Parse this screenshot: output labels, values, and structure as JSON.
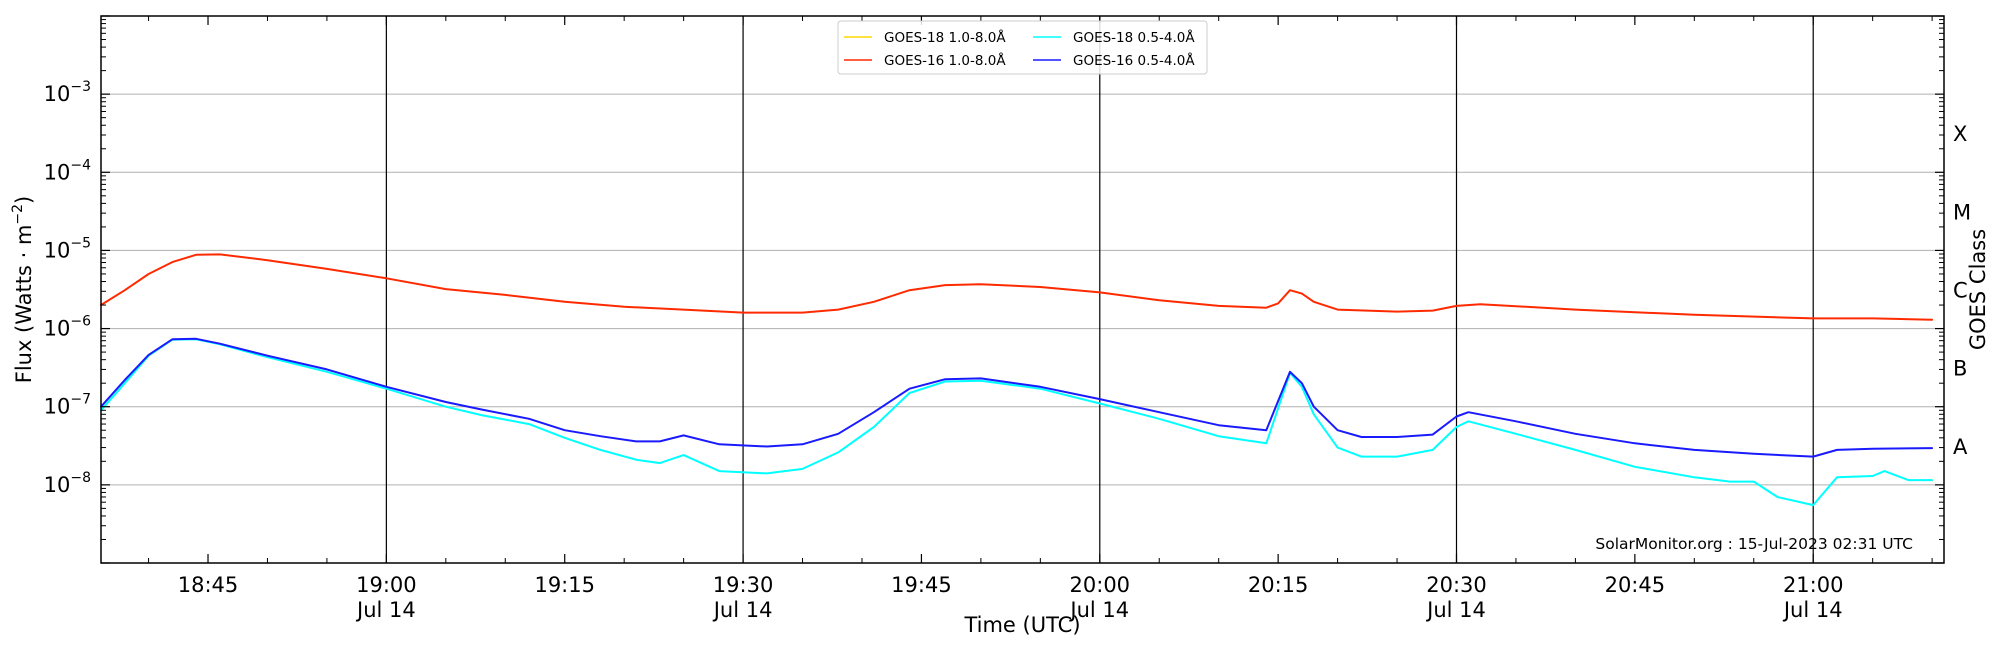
{
  "chart_data": {
    "type": "line",
    "xlabel": "Time (UTC)",
    "ylabel": "Flux (Watts · m⁻²)",
    "ylabel_base": "Flux (Watts · m",
    "ylabel_sup": "−2",
    "ylabel_close": ")",
    "y2label": "GOES Class",
    "y_scale": "log",
    "xlim": [
      "18:36",
      "21:11"
    ],
    "ylim": [
      1e-09,
      0.01
    ],
    "grid": "horizontal",
    "legend_position": "top-center",
    "x_ticks": [
      {
        "time": "18:45",
        "label": "18:45",
        "sub": ""
      },
      {
        "time": "19:00",
        "label": "19:00",
        "sub": "Jul 14"
      },
      {
        "time": "19:15",
        "label": "19:15",
        "sub": ""
      },
      {
        "time": "19:30",
        "label": "19:30",
        "sub": "Jul 14"
      },
      {
        "time": "19:45",
        "label": "19:45",
        "sub": ""
      },
      {
        "time": "20:00",
        "label": "20:00",
        "sub": "Jul 14"
      },
      {
        "time": "20:15",
        "label": "20:15",
        "sub": ""
      },
      {
        "time": "20:30",
        "label": "20:30",
        "sub": "Jul 14"
      },
      {
        "time": "20:45",
        "label": "20:45",
        "sub": ""
      },
      {
        "time": "21:00",
        "label": "21:00",
        "sub": "Jul 14"
      }
    ],
    "vertical_lines": [
      "19:00",
      "19:30",
      "20:00",
      "20:30",
      "21:00"
    ],
    "y_ticks": [
      {
        "exp": -3,
        "label": "10",
        "sup": "−3"
      },
      {
        "exp": -4,
        "label": "10",
        "sup": "−4"
      },
      {
        "exp": -5,
        "label": "10",
        "sup": "−5"
      },
      {
        "exp": -6,
        "label": "10",
        "sup": "−6"
      },
      {
        "exp": -7,
        "label": "10",
        "sup": "−7"
      },
      {
        "exp": -8,
        "label": "10",
        "sup": "−8"
      }
    ],
    "goes_classes": [
      {
        "label": "X",
        "exp": -3.5
      },
      {
        "label": "M",
        "exp": -4.5
      },
      {
        "label": "C",
        "exp": -5.5
      },
      {
        "label": "B",
        "exp": -6.5
      },
      {
        "label": "A",
        "exp": -7.5
      }
    ],
    "series": [
      {
        "name": "GOES-18 1.0-8.0Å",
        "color": "#FFD700",
        "points": []
      },
      {
        "name": "GOES-16 1.0-8.0Å",
        "color": "#FF2A00",
        "points": [
          [
            "18:36",
            2e-06
          ],
          [
            "18:38",
            3.1e-06
          ],
          [
            "18:40",
            5e-06
          ],
          [
            "18:42",
            7.1e-06
          ],
          [
            "18:44",
            8.8e-06
          ],
          [
            "18:46",
            8.9e-06
          ],
          [
            "18:50",
            7.5e-06
          ],
          [
            "18:55",
            5.8e-06
          ],
          [
            "19:00",
            4.4e-06
          ],
          [
            "19:05",
            3.2e-06
          ],
          [
            "19:10",
            2.7e-06
          ],
          [
            "19:15",
            2.2e-06
          ],
          [
            "19:20",
            1.9e-06
          ],
          [
            "19:25",
            1.75e-06
          ],
          [
            "19:30",
            1.6e-06
          ],
          [
            "19:35",
            1.6e-06
          ],
          [
            "19:38",
            1.75e-06
          ],
          [
            "19:41",
            2.2e-06
          ],
          [
            "19:44",
            3.1e-06
          ],
          [
            "19:47",
            3.6e-06
          ],
          [
            "19:50",
            3.7e-06
          ],
          [
            "19:55",
            3.4e-06
          ],
          [
            "20:00",
            2.9e-06
          ],
          [
            "20:05",
            2.3e-06
          ],
          [
            "20:10",
            1.95e-06
          ],
          [
            "20:14",
            1.85e-06
          ],
          [
            "20:15",
            2.1e-06
          ],
          [
            "20:16",
            3.1e-06
          ],
          [
            "20:17",
            2.8e-06
          ],
          [
            "20:18",
            2.2e-06
          ],
          [
            "20:20",
            1.75e-06
          ],
          [
            "20:25",
            1.65e-06
          ],
          [
            "20:28",
            1.7e-06
          ],
          [
            "20:30",
            1.95e-06
          ],
          [
            "20:32",
            2.05e-06
          ],
          [
            "20:40",
            1.75e-06
          ],
          [
            "20:50",
            1.5e-06
          ],
          [
            "21:00",
            1.35e-06
          ],
          [
            "21:05",
            1.35e-06
          ],
          [
            "21:10",
            1.3e-06
          ]
        ]
      },
      {
        "name": "GOES-18 0.5-4.0Å",
        "color": "#00FFFF",
        "points": [
          [
            "18:36",
            9e-08
          ],
          [
            "18:38",
            2e-07
          ],
          [
            "18:40",
            4.5e-07
          ],
          [
            "18:42",
            7.2e-07
          ],
          [
            "18:44",
            7.3e-07
          ],
          [
            "18:46",
            6.3e-07
          ],
          [
            "18:50",
            4.3e-07
          ],
          [
            "18:55",
            2.8e-07
          ],
          [
            "19:00",
            1.7e-07
          ],
          [
            "19:05",
            1e-07
          ],
          [
            "19:08",
            7.8e-08
          ],
          [
            "19:12",
            6e-08
          ],
          [
            "19:15",
            4e-08
          ],
          [
            "19:18",
            2.8e-08
          ],
          [
            "19:21",
            2.1e-08
          ],
          [
            "19:23",
            1.9e-08
          ],
          [
            "19:25",
            2.4e-08
          ],
          [
            "19:28",
            1.5e-08
          ],
          [
            "19:32",
            1.4e-08
          ],
          [
            "19:35",
            1.6e-08
          ],
          [
            "19:38",
            2.6e-08
          ],
          [
            "19:41",
            5.5e-08
          ],
          [
            "19:44",
            1.5e-07
          ],
          [
            "19:47",
            2.1e-07
          ],
          [
            "19:50",
            2.15e-07
          ],
          [
            "19:55",
            1.7e-07
          ],
          [
            "20:00",
            1.1e-07
          ],
          [
            "20:05",
            7e-08
          ],
          [
            "20:10",
            4.2e-08
          ],
          [
            "20:14",
            3.4e-08
          ],
          [
            "20:16",
            2.7e-07
          ],
          [
            "20:17",
            1.8e-07
          ],
          [
            "20:18",
            8e-08
          ],
          [
            "20:20",
            3e-08
          ],
          [
            "20:22",
            2.3e-08
          ],
          [
            "20:25",
            2.3e-08
          ],
          [
            "20:28",
            2.8e-08
          ],
          [
            "20:30",
            5.5e-08
          ],
          [
            "20:31",
            6.5e-08
          ],
          [
            "20:35",
            4.5e-08
          ],
          [
            "20:40",
            2.8e-08
          ],
          [
            "20:45",
            1.7e-08
          ],
          [
            "20:50",
            1.25e-08
          ],
          [
            "20:53",
            1.1e-08
          ],
          [
            "20:55",
            1.1e-08
          ],
          [
            "20:57",
            7e-09
          ],
          [
            "21:00",
            5.5e-09
          ],
          [
            "21:02",
            1.25e-08
          ],
          [
            "21:05",
            1.3e-08
          ],
          [
            "21:06",
            1.5e-08
          ],
          [
            "21:08",
            1.15e-08
          ],
          [
            "21:10",
            1.15e-08
          ]
        ]
      },
      {
        "name": "GOES-16 0.5-4.0Å",
        "color": "#1A1AFF",
        "points": [
          [
            "18:36",
            1e-07
          ],
          [
            "18:38",
            2.2e-07
          ],
          [
            "18:40",
            4.6e-07
          ],
          [
            "18:42",
            7.3e-07
          ],
          [
            "18:44",
            7.4e-07
          ],
          [
            "18:46",
            6.4e-07
          ],
          [
            "18:50",
            4.5e-07
          ],
          [
            "18:55",
            3e-07
          ],
          [
            "19:00",
            1.8e-07
          ],
          [
            "19:05",
            1.15e-07
          ],
          [
            "19:08",
            9.2e-08
          ],
          [
            "19:12",
            7e-08
          ],
          [
            "19:15",
            5e-08
          ],
          [
            "19:18",
            4.2e-08
          ],
          [
            "19:21",
            3.6e-08
          ],
          [
            "19:23",
            3.6e-08
          ],
          [
            "19:25",
            4.3e-08
          ],
          [
            "19:28",
            3.3e-08
          ],
          [
            "19:32",
            3.1e-08
          ],
          [
            "19:35",
            3.3e-08
          ],
          [
            "19:38",
            4.5e-08
          ],
          [
            "19:41",
            8.5e-08
          ],
          [
            "19:44",
            1.7e-07
          ],
          [
            "19:47",
            2.25e-07
          ],
          [
            "19:50",
            2.3e-07
          ],
          [
            "19:55",
            1.8e-07
          ],
          [
            "20:00",
            1.25e-07
          ],
          [
            "20:05",
            8.5e-08
          ],
          [
            "20:10",
            5.8e-08
          ],
          [
            "20:14",
            5e-08
          ],
          [
            "20:16",
            2.8e-07
          ],
          [
            "20:17",
            2e-07
          ],
          [
            "20:18",
            1e-07
          ],
          [
            "20:20",
            5e-08
          ],
          [
            "20:22",
            4.1e-08
          ],
          [
            "20:25",
            4.1e-08
          ],
          [
            "20:28",
            4.4e-08
          ],
          [
            "20:30",
            7.5e-08
          ],
          [
            "20:31",
            8.5e-08
          ],
          [
            "20:35",
            6.5e-08
          ],
          [
            "20:40",
            4.5e-08
          ],
          [
            "20:45",
            3.4e-08
          ],
          [
            "20:50",
            2.8e-08
          ],
          [
            "20:55",
            2.5e-08
          ],
          [
            "21:00",
            2.3e-08
          ],
          [
            "21:02",
            2.8e-08
          ],
          [
            "21:05",
            2.9e-08
          ],
          [
            "21:10",
            2.95e-08
          ]
        ]
      }
    ],
    "watermark": "SolarMonitor.org : 15-Jul-2023 02:31 UTC"
  }
}
